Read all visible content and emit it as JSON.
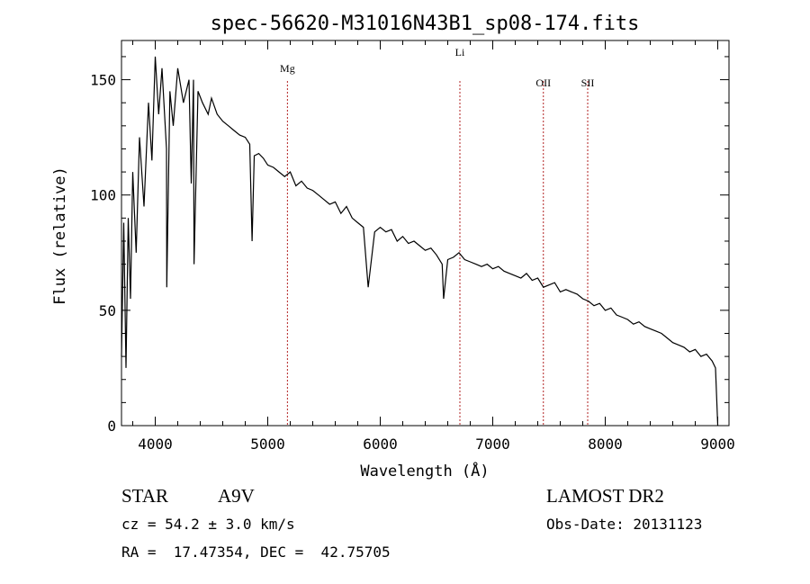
{
  "chart_data": {
    "type": "line",
    "title": "spec-56620-M31016N43B1_sp08-174.fits",
    "xlabel": "Wavelength (Å)",
    "ylabel": "Flux (relative)",
    "xlim": [
      3700,
      9100
    ],
    "ylim": [
      0,
      167
    ],
    "x_ticks": [
      4000,
      5000,
      6000,
      7000,
      8000,
      9000
    ],
    "y_ticks": [
      0,
      50,
      100,
      150
    ],
    "x_tick_labels": [
      "4000",
      "5000",
      "6000",
      "7000",
      "8000",
      "9000"
    ],
    "y_tick_labels": [
      "0",
      "50",
      "100",
      "150"
    ],
    "grid": false,
    "line_color": "#000000",
    "marker_color": "#b22222",
    "series": [
      {
        "x": [
          3700,
          3720,
          3740,
          3760,
          3780,
          3800,
          3830,
          3860,
          3900,
          3940,
          3970,
          4000,
          4030,
          4060,
          4100,
          4102,
          4130,
          4160,
          4200,
          4250,
          4300,
          4320,
          4340,
          4345,
          4380,
          4420,
          4470,
          4500,
          4550,
          4600,
          4650,
          4700,
          4750,
          4800,
          4840,
          4861,
          4880,
          4920,
          4960,
          5000,
          5050,
          5100,
          5150,
          5200,
          5250,
          5300,
          5350,
          5400,
          5450,
          5500,
          5550,
          5600,
          5650,
          5700,
          5750,
          5800,
          5850,
          5893,
          5950,
          6000,
          6050,
          6100,
          6150,
          6200,
          6250,
          6300,
          6350,
          6400,
          6450,
          6500,
          6550,
          6563,
          6600,
          6650,
          6700,
          6750,
          6800,
          6850,
          6900,
          6950,
          7000,
          7050,
          7100,
          7150,
          7200,
          7250,
          7300,
          7350,
          7400,
          7450,
          7500,
          7550,
          7600,
          7650,
          7700,
          7750,
          7800,
          7850,
          7900,
          7950,
          8000,
          8050,
          8100,
          8150,
          8200,
          8250,
          8300,
          8350,
          8400,
          8450,
          8500,
          8550,
          8600,
          8650,
          8700,
          8750,
          8800,
          8850,
          8900,
          8950,
          8980,
          9000
        ],
        "y": [
          30,
          88,
          25,
          90,
          55,
          110,
          75,
          125,
          95,
          140,
          115,
          160,
          135,
          155,
          120,
          60,
          145,
          130,
          155,
          140,
          150,
          105,
          150,
          70,
          145,
          140,
          135,
          142,
          135,
          132,
          130,
          128,
          126,
          125,
          122,
          80,
          117,
          118,
          116,
          113,
          112,
          110,
          108,
          110,
          104,
          106,
          103,
          102,
          100,
          98,
          96,
          97,
          92,
          95,
          90,
          88,
          86,
          60,
          84,
          86,
          84,
          85,
          80,
          82,
          79,
          80,
          78,
          76,
          77,
          74,
          70,
          55,
          72,
          73,
          75,
          72,
          71,
          70,
          69,
          70,
          68,
          69,
          67,
          66,
          65,
          64,
          66,
          63,
          64,
          60,
          61,
          62,
          58,
          59,
          58,
          57,
          55,
          54,
          52,
          53,
          50,
          51,
          48,
          47,
          46,
          44,
          45,
          43,
          42,
          41,
          40,
          38,
          36,
          35,
          34,
          32,
          33,
          30,
          31,
          28,
          25,
          0
        ]
      }
    ],
    "line_markers": [
      {
        "label": "Mg",
        "x": 5175
      },
      {
        "label": "Li",
        "x": 6708
      },
      {
        "label": "OII",
        "x": 7450
      },
      {
        "label": "SII",
        "x": 7844
      }
    ]
  },
  "info": {
    "object_class": "STAR",
    "subclass": "A9V",
    "survey": "LAMOST DR2",
    "cz": "cz = 54.2 ± 3.0 km/s",
    "obs_date": "Obs-Date: 20131123",
    "coords": "RA =  17.47354, DEC =  42.75705"
  }
}
